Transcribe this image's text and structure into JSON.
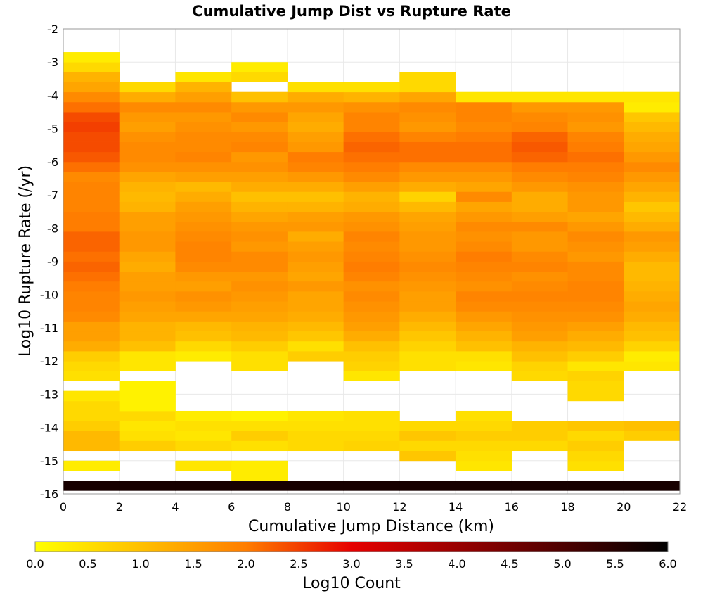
{
  "chart_data": {
    "type": "heatmap",
    "title": "Cumulative Jump Dist vs Rupture Rate",
    "xlabel": "Cumulative Jump Distance (km)",
    "ylabel": "Log10 Rupture Rate (/yr)",
    "xlim": [
      0,
      22
    ],
    "ylim": [
      -16,
      -2
    ],
    "x_ticks": [
      "0",
      "2",
      "4",
      "6",
      "8",
      "10",
      "12",
      "14",
      "16",
      "18",
      "20",
      "22"
    ],
    "y_ticks": [
      "-2",
      "-3",
      "-4",
      "-5",
      "-6",
      "-7",
      "-8",
      "-9",
      "-10",
      "-11",
      "-12",
      "-13",
      "-14",
      "-15",
      "-16"
    ],
    "x_bin_width_km": 2,
    "y_bin_height_log10": 0.3,
    "colorbar": {
      "label": "Log10 Count",
      "min": 0.0,
      "max": 6.0,
      "ticks": [
        "0.0",
        "0.5",
        "1.0",
        "1.5",
        "2.0",
        "2.5",
        "3.0",
        "3.5",
        "4.0",
        "4.5",
        "5.0",
        "5.5",
        "6.0"
      ]
    },
    "legend_placement": "bottom",
    "grid": true,
    "y_bin_starts": [
      -15.9,
      -15.6,
      -15.3,
      -15.0,
      -14.7,
      -14.4,
      -14.1,
      -13.8,
      -13.5,
      -13.2,
      -12.9,
      -12.6,
      -12.3,
      -12.0,
      -11.7,
      -11.4,
      -11.1,
      -10.8,
      -10.5,
      -10.2,
      -9.9,
      -9.6,
      -9.3,
      -9.0,
      -8.7,
      -8.4,
      -8.1,
      -7.8,
      -7.5,
      -7.2,
      -6.9,
      -6.6,
      -6.3,
      -6.0,
      -5.7,
      -5.4,
      -5.1,
      -4.8,
      -4.5,
      -4.2,
      -3.9,
      -3.6,
      -3.3,
      -3.0
    ],
    "columns": [
      {
        "x_start": 0,
        "values": [
          5.7,
          null,
          0.3,
          null,
          1.1,
          1.1,
          0.8,
          0.6,
          0.6,
          0.4,
          null,
          0.5,
          0.6,
          0.8,
          1.3,
          1.5,
          1.5,
          1.8,
          1.9,
          1.9,
          2.0,
          2.1,
          2.2,
          2.1,
          2.2,
          2.2,
          2.0,
          2.0,
          1.9,
          1.9,
          1.9,
          1.8,
          2.1,
          2.3,
          2.4,
          2.4,
          2.5,
          2.4,
          2.1,
          1.8,
          1.4,
          1.2,
          0.6,
          0.3
        ]
      },
      {
        "x_start": 2,
        "values": [
          5.7,
          null,
          null,
          null,
          0.8,
          0.5,
          0.4,
          0.6,
          0.2,
          0.2,
          0.2,
          null,
          0.4,
          0.4,
          1.0,
          1.2,
          1.2,
          1.4,
          1.5,
          1.6,
          1.5,
          1.5,
          1.3,
          1.4,
          1.6,
          1.6,
          1.5,
          1.5,
          1.2,
          1.1,
          1.2,
          1.4,
          1.7,
          1.8,
          1.8,
          1.7,
          1.5,
          1.6,
          1.8,
          1.3,
          0.6,
          null,
          null,
          null
        ]
      },
      {
        "x_start": 4,
        "values": [
          5.7,
          null,
          0.4,
          null,
          0.6,
          0.4,
          0.5,
          0.3,
          null,
          null,
          null,
          null,
          null,
          0.3,
          0.6,
          1.0,
          1.1,
          1.4,
          1.6,
          1.7,
          1.5,
          1.6,
          1.8,
          1.9,
          1.9,
          1.8,
          1.7,
          1.6,
          1.5,
          1.3,
          1.1,
          1.5,
          1.7,
          1.9,
          1.8,
          1.8,
          1.7,
          1.6,
          1.8,
          1.5,
          1.2,
          0.4,
          null,
          null
        ]
      },
      {
        "x_start": 6,
        "values": [
          5.7,
          0.3,
          0.3,
          null,
          0.5,
          0.8,
          0.5,
          0.2,
          null,
          null,
          null,
          null,
          0.5,
          0.5,
          0.8,
          1.1,
          1.2,
          1.4,
          1.5,
          1.6,
          1.7,
          1.6,
          1.8,
          1.8,
          1.6,
          1.7,
          1.6,
          1.4,
          1.2,
          1.0,
          1.3,
          1.5,
          1.7,
          1.6,
          1.9,
          1.8,
          1.6,
          1.8,
          1.6,
          1.0,
          null,
          0.6,
          0.3,
          null
        ]
      },
      {
        "x_start": 8,
        "values": [
          5.7,
          null,
          null,
          null,
          0.6,
          0.6,
          0.5,
          0.4,
          null,
          null,
          null,
          null,
          null,
          0.8,
          0.5,
          0.9,
          1.1,
          1.3,
          1.4,
          1.4,
          1.6,
          1.4,
          1.5,
          1.6,
          1.5,
          1.3,
          1.6,
          1.5,
          1.2,
          1.0,
          1.3,
          1.6,
          1.9,
          2.0,
          1.6,
          1.5,
          1.3,
          1.4,
          1.6,
          1.3,
          0.5,
          null,
          null,
          null
        ]
      },
      {
        "x_start": 10,
        "values": [
          5.7,
          null,
          null,
          null,
          0.7,
          0.6,
          0.5,
          0.5,
          null,
          null,
          null,
          0.4,
          0.7,
          0.8,
          1.0,
          1.3,
          1.5,
          1.6,
          1.7,
          1.8,
          1.7,
          1.9,
          2.0,
          1.9,
          1.8,
          1.9,
          1.7,
          1.6,
          1.3,
          1.2,
          1.5,
          1.8,
          2.0,
          2.1,
          2.2,
          2.1,
          1.9,
          1.9,
          1.7,
          1.2,
          0.5,
          null,
          null,
          null
        ]
      },
      {
        "x_start": 12,
        "values": [
          5.7,
          null,
          null,
          0.9,
          0.6,
          0.9,
          0.6,
          null,
          null,
          null,
          null,
          null,
          0.5,
          0.5,
          0.7,
          0.9,
          1.1,
          1.3,
          1.5,
          1.5,
          1.6,
          1.7,
          1.8,
          1.7,
          1.6,
          1.6,
          1.5,
          1.4,
          1.1,
          0.7,
          1.3,
          1.6,
          1.8,
          2.1,
          2.1,
          1.9,
          1.6,
          1.7,
          1.8,
          1.4,
          0.6,
          0.6,
          null,
          null
        ]
      },
      {
        "x_start": 14,
        "values": [
          5.7,
          null,
          0.4,
          0.5,
          0.6,
          0.8,
          0.6,
          0.5,
          null,
          null,
          null,
          null,
          0.4,
          0.5,
          1.0,
          1.2,
          1.4,
          1.6,
          1.8,
          1.9,
          1.7,
          1.8,
          1.9,
          2.0,
          1.8,
          1.7,
          1.8,
          1.6,
          1.4,
          1.8,
          1.4,
          1.6,
          1.8,
          2.1,
          2.1,
          2.0,
          1.8,
          1.9,
          1.9,
          0.4,
          null,
          null,
          null,
          null
        ]
      },
      {
        "x_start": 16,
        "values": [
          5.7,
          null,
          null,
          null,
          0.6,
          0.8,
          0.8,
          null,
          null,
          null,
          null,
          0.6,
          0.7,
          1.0,
          1.2,
          1.5,
          1.6,
          1.7,
          1.8,
          1.9,
          1.8,
          1.7,
          1.9,
          1.8,
          1.6,
          1.6,
          1.8,
          1.5,
          1.3,
          1.3,
          1.6,
          1.8,
          2.0,
          2.2,
          2.3,
          2.2,
          1.9,
          1.8,
          1.6,
          0.4,
          null,
          null,
          null,
          null
        ]
      },
      {
        "x_start": 18,
        "values": [
          5.7,
          null,
          0.5,
          0.6,
          0.8,
          0.6,
          0.9,
          null,
          null,
          0.6,
          0.6,
          0.7,
          0.4,
          0.8,
          1.1,
          1.3,
          1.5,
          1.7,
          1.8,
          1.9,
          1.9,
          1.8,
          1.8,
          1.6,
          1.7,
          1.8,
          1.6,
          1.4,
          1.6,
          1.6,
          1.7,
          1.9,
          2.0,
          2.1,
          2.0,
          1.9,
          1.6,
          1.7,
          1.6,
          0.4,
          null,
          null,
          null,
          null
        ]
      },
      {
        "x_start": 20,
        "values": [
          5.7,
          null,
          null,
          null,
          null,
          0.8,
          1.0,
          null,
          null,
          null,
          null,
          null,
          0.4,
          0.3,
          0.7,
          1.0,
          1.1,
          1.3,
          1.4,
          1.3,
          1.2,
          1.1,
          1.1,
          1.3,
          1.5,
          1.6,
          1.3,
          1.1,
          0.9,
          1.2,
          1.4,
          1.6,
          1.8,
          1.6,
          1.4,
          1.3,
          1.1,
          0.9,
          0.3,
          0.4,
          null,
          null,
          null,
          null
        ]
      }
    ]
  }
}
